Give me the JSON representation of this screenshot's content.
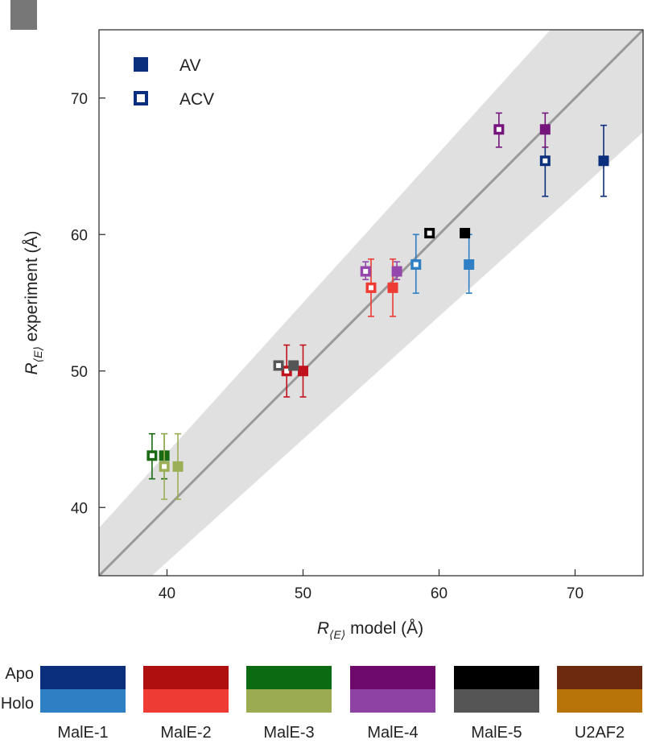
{
  "chart_data": {
    "type": "scatter",
    "title": "",
    "xlabel": {
      "main": "R",
      "sub": "⟨E⟩",
      "rest": " model (Å)"
    },
    "ylabel": {
      "main": "R",
      "sub": "⟨E⟩",
      "rest": " experiment (Å)"
    },
    "xlim": [
      35,
      75
    ],
    "ylim": [
      35,
      75
    ],
    "xticks": [
      40,
      50,
      60,
      70
    ],
    "yticks": [
      40,
      50,
      60,
      70
    ],
    "grid": false,
    "reference_line": {
      "slope": 1,
      "intercept": 0,
      "band_fraction": 0.1,
      "line_color": "#9a9a9a",
      "band_color": "#e0e0e0"
    },
    "legend": {
      "position": "top-left",
      "items": [
        {
          "label": "AV",
          "marker": "filled-square",
          "color": "#0b2f7c"
        },
        {
          "label": "ACV",
          "marker": "open-square",
          "color": "#0b2f7c"
        }
      ]
    },
    "points": [
      {
        "protein": "MalE-1",
        "state": "Apo",
        "method": "AV",
        "x": 72.1,
        "y": 65.4,
        "yerr": [
          62.8,
          68.0
        ],
        "color": "#0b2f7c"
      },
      {
        "protein": "MalE-1",
        "state": "Apo",
        "method": "ACV",
        "x": 67.8,
        "y": 65.4,
        "yerr": [
          62.8,
          68.0
        ],
        "color": "#0b2f7c"
      },
      {
        "protein": "MalE-1",
        "state": "Holo",
        "method": "AV",
        "x": 62.2,
        "y": 57.8,
        "yerr": [
          55.7,
          60.0
        ],
        "color": "#2f7fc4"
      },
      {
        "protein": "MalE-1",
        "state": "Holo",
        "method": "ACV",
        "x": 58.3,
        "y": 57.8,
        "yerr": [
          55.7,
          60.0
        ],
        "color": "#2f7fc4"
      },
      {
        "protein": "MalE-2",
        "state": "Apo",
        "method": "AV",
        "x": 50.0,
        "y": 50.0,
        "yerr": [
          48.1,
          51.9
        ],
        "color": "#c0121c"
      },
      {
        "protein": "MalE-2",
        "state": "Apo",
        "method": "ACV",
        "x": 48.8,
        "y": 50.0,
        "yerr": [
          48.1,
          51.9
        ],
        "color": "#c0121c"
      },
      {
        "protein": "MalE-2",
        "state": "Holo",
        "method": "AV",
        "x": 56.6,
        "y": 56.1,
        "yerr": [
          54.0,
          58.2
        ],
        "color": "#ee3b33"
      },
      {
        "protein": "MalE-2",
        "state": "Holo",
        "method": "ACV",
        "x": 55.0,
        "y": 56.1,
        "yerr": [
          54.0,
          58.2
        ],
        "color": "#ee3b33"
      },
      {
        "protein": "MalE-3",
        "state": "Apo",
        "method": "AV",
        "x": 39.8,
        "y": 43.8,
        "yerr": [
          42.1,
          45.4
        ],
        "color": "#1a6a14"
      },
      {
        "protein": "MalE-3",
        "state": "Apo",
        "method": "ACV",
        "x": 38.9,
        "y": 43.8,
        "yerr": [
          42.1,
          45.4
        ],
        "color": "#1a6a14"
      },
      {
        "protein": "MalE-3",
        "state": "Holo",
        "method": "AV",
        "x": 40.8,
        "y": 43.0,
        "yerr": [
          40.6,
          45.4
        ],
        "color": "#9bb056"
      },
      {
        "protein": "MalE-3",
        "state": "Holo",
        "method": "ACV",
        "x": 39.8,
        "y": 43.0,
        "yerr": [
          40.6,
          45.4
        ],
        "color": "#9bb056"
      },
      {
        "protein": "MalE-4",
        "state": "Apo",
        "method": "AV",
        "x": 67.8,
        "y": 67.7,
        "yerr": [
          66.4,
          68.9
        ],
        "color": "#75157b"
      },
      {
        "protein": "MalE-4",
        "state": "Apo",
        "method": "ACV",
        "x": 64.4,
        "y": 67.7,
        "yerr": [
          66.4,
          68.9
        ],
        "color": "#75157b"
      },
      {
        "protein": "MalE-4",
        "state": "Holo",
        "method": "AV",
        "x": 56.9,
        "y": 57.3,
        "yerr": [
          56.7,
          58.0
        ],
        "color": "#9546ac"
      },
      {
        "protein": "MalE-4",
        "state": "Holo",
        "method": "ACV",
        "x": 54.6,
        "y": 57.3,
        "yerr": [
          56.7,
          58.0
        ],
        "color": "#9546ac"
      },
      {
        "protein": "MalE-5",
        "state": "Apo",
        "method": "AV",
        "x": 61.9,
        "y": 60.1,
        "yerr": null,
        "color": "#000000"
      },
      {
        "protein": "MalE-5",
        "state": "Apo",
        "method": "ACV",
        "x": 59.3,
        "y": 60.1,
        "yerr": null,
        "color": "#000000"
      },
      {
        "protein": "MalE-5",
        "state": "Holo",
        "method": "AV",
        "x": 49.3,
        "y": 50.4,
        "yerr": null,
        "color": "#555555"
      },
      {
        "protein": "MalE-5",
        "state": "Holo",
        "method": "ACV",
        "x": 48.2,
        "y": 50.4,
        "yerr": null,
        "color": "#555555"
      }
    ],
    "color_key": {
      "row_labels": [
        "Apo",
        "Holo"
      ],
      "proteins": [
        {
          "name": "MalE-1",
          "apo": "#0b2f7c",
          "holo": "#2f7fc4"
        },
        {
          "name": "MalE-2",
          "apo": "#b00f0f",
          "holo": "#ee3b33"
        },
        {
          "name": "MalE-3",
          "apo": "#0a6b12",
          "holo": "#9bab52"
        },
        {
          "name": "MalE-4",
          "apo": "#6e0a6e",
          "holo": "#8e42a4"
        },
        {
          "name": "MalE-5",
          "apo": "#000000",
          "holo": "#555555"
        },
        {
          "name": "U2AF2",
          "apo": "#6e2a0e",
          "holo": "#b87408"
        }
      ]
    }
  }
}
